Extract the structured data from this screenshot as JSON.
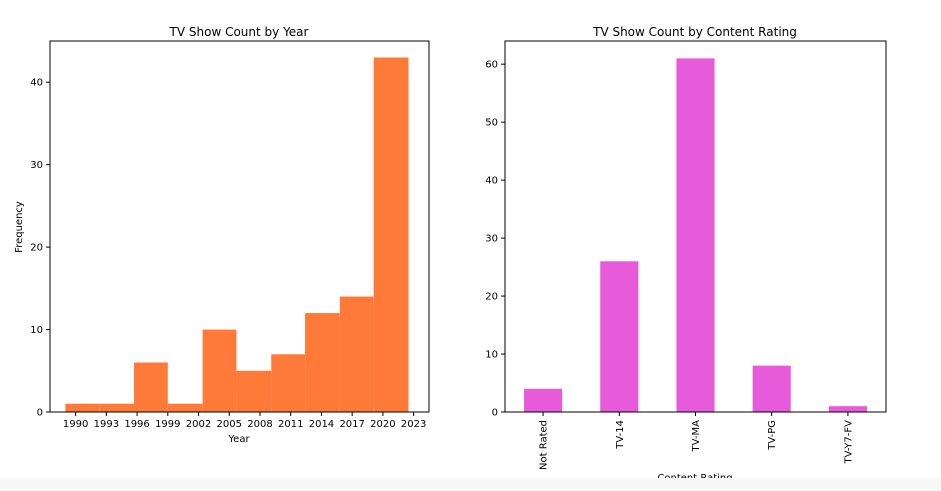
{
  "chart_data": [
    {
      "type": "bar",
      "title": "TV Show Count by Year",
      "xlabel": "Year",
      "ylabel": "Frequency",
      "color": "#ff7a38",
      "xlim": [
        1987.5,
        2024.5
      ],
      "ylim": [
        0,
        45
      ],
      "xticks": [
        1990,
        1993,
        1996,
        1999,
        2002,
        2005,
        2008,
        2011,
        2014,
        2017,
        2020,
        2023
      ],
      "yticks": [
        0,
        10,
        20,
        30,
        40
      ],
      "bins": [
        {
          "x0": 1989.0,
          "x1": 1992.3,
          "value": 1
        },
        {
          "x0": 1992.3,
          "x1": 1995.7,
          "value": 1
        },
        {
          "x0": 1995.7,
          "x1": 1999.0,
          "value": 6
        },
        {
          "x0": 1999.0,
          "x1": 2002.4,
          "value": 1
        },
        {
          "x0": 2002.4,
          "x1": 2005.7,
          "value": 10
        },
        {
          "x0": 2005.7,
          "x1": 2009.1,
          "value": 5
        },
        {
          "x0": 2009.1,
          "x1": 2012.4,
          "value": 7
        },
        {
          "x0": 2012.4,
          "x1": 2015.8,
          "value": 12
        },
        {
          "x0": 2015.8,
          "x1": 2019.1,
          "value": 14
        },
        {
          "x0": 2019.1,
          "x1": 2022.5,
          "value": 43
        }
      ]
    },
    {
      "type": "bar",
      "title": "TV Show Count by Content Rating",
      "xlabel": "Content Rating",
      "ylabel": "",
      "color": "#e75ad9",
      "ylim": [
        0,
        64
      ],
      "yticks": [
        0,
        10,
        20,
        30,
        40,
        50,
        60
      ],
      "categories": [
        "Not Rated",
        "TV-14",
        "TV-MA",
        "TV-PG",
        "TV-Y7-FV"
      ],
      "values": [
        4,
        26,
        61,
        8,
        1
      ]
    }
  ]
}
